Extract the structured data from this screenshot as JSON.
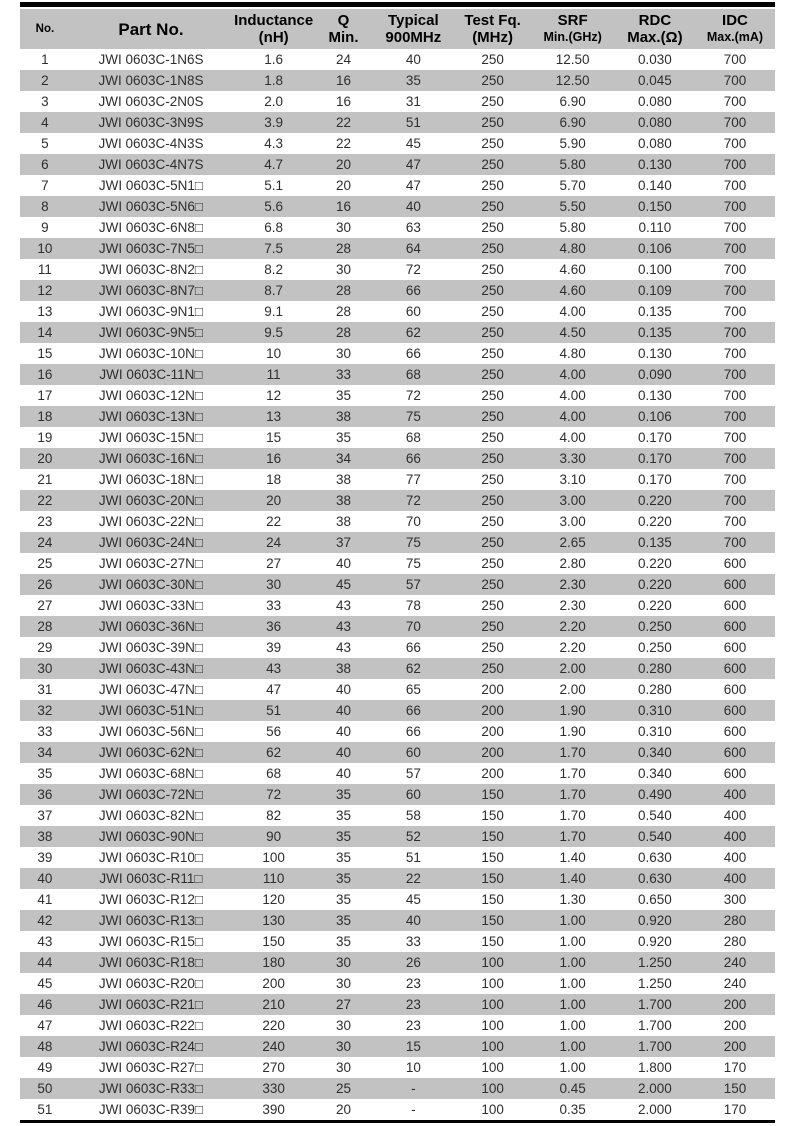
{
  "colors": {
    "header_bg": "#c2c2c2",
    "stripe_bg": "#c2c2c2",
    "rule": "#000000",
    "text_header": "#000000",
    "text_body": "#2e2e2e"
  },
  "table": {
    "columns": [
      {
        "key": "no",
        "line1": "No.",
        "line2": ""
      },
      {
        "key": "part_no",
        "line1": "Part No.",
        "line2": ""
      },
      {
        "key": "inductance",
        "line1": "Inductance",
        "line2": "(nH)"
      },
      {
        "key": "q_min",
        "line1": "Q",
        "line2": "Min."
      },
      {
        "key": "typical",
        "line1": "Typical",
        "line2": "900MHz"
      },
      {
        "key": "test_fq",
        "line1": "Test Fq.",
        "line2": "(MHz)"
      },
      {
        "key": "srf",
        "line1": "SRF",
        "line2": "Min.(GHz)"
      },
      {
        "key": "rdc",
        "line1": "RDC",
        "line2": "Max.(Ω)"
      },
      {
        "key": "idc",
        "line1": "IDC",
        "line2": "Max.(mA)"
      }
    ],
    "rows": [
      [
        "1",
        "JWI 0603C-1N6S",
        "1.6",
        "24",
        "40",
        "250",
        "12.50",
        "0.030",
        "700"
      ],
      [
        "2",
        "JWI 0603C-1N8S",
        "1.8",
        "16",
        "35",
        "250",
        "12.50",
        "0.045",
        "700"
      ],
      [
        "3",
        "JWI 0603C-2N0S",
        "2.0",
        "16",
        "31",
        "250",
        "6.90",
        "0.080",
        "700"
      ],
      [
        "4",
        "JWI 0603C-3N9S",
        "3.9",
        "22",
        "51",
        "250",
        "6.90",
        "0.080",
        "700"
      ],
      [
        "5",
        "JWI 0603C-4N3S",
        "4.3",
        "22",
        "45",
        "250",
        "5.90",
        "0.080",
        "700"
      ],
      [
        "6",
        "JWI 0603C-4N7S",
        "4.7",
        "20",
        "47",
        "250",
        "5.80",
        "0.130",
        "700"
      ],
      [
        "7",
        "JWI 0603C-5N1□",
        "5.1",
        "20",
        "47",
        "250",
        "5.70",
        "0.140",
        "700"
      ],
      [
        "8",
        "JWI 0603C-5N6□",
        "5.6",
        "16",
        "40",
        "250",
        "5.50",
        "0.150",
        "700"
      ],
      [
        "9",
        "JWI 0603C-6N8□",
        "6.8",
        "30",
        "63",
        "250",
        "5.80",
        "0.110",
        "700"
      ],
      [
        "10",
        "JWI 0603C-7N5□",
        "7.5",
        "28",
        "64",
        "250",
        "4.80",
        "0.106",
        "700"
      ],
      [
        "11",
        "JWI 0603C-8N2□",
        "8.2",
        "30",
        "72",
        "250",
        "4.60",
        "0.100",
        "700"
      ],
      [
        "12",
        "JWI 0603C-8N7□",
        "8.7",
        "28",
        "66",
        "250",
        "4.60",
        "0.109",
        "700"
      ],
      [
        "13",
        "JWI 0603C-9N1□",
        "9.1",
        "28",
        "60",
        "250",
        "4.00",
        "0.135",
        "700"
      ],
      [
        "14",
        "JWI 0603C-9N5□",
        "9.5",
        "28",
        "62",
        "250",
        "4.50",
        "0.135",
        "700"
      ],
      [
        "15",
        "JWI 0603C-10N□",
        "10",
        "30",
        "66",
        "250",
        "4.80",
        "0.130",
        "700"
      ],
      [
        "16",
        "JWI 0603C-11N□",
        "11",
        "33",
        "68",
        "250",
        "4.00",
        "0.090",
        "700"
      ],
      [
        "17",
        "JWI 0603C-12N□",
        "12",
        "35",
        "72",
        "250",
        "4.00",
        "0.130",
        "700"
      ],
      [
        "18",
        "JWI 0603C-13N□",
        "13",
        "38",
        "75",
        "250",
        "4.00",
        "0.106",
        "700"
      ],
      [
        "19",
        "JWI 0603C-15N□",
        "15",
        "35",
        "68",
        "250",
        "4.00",
        "0.170",
        "700"
      ],
      [
        "20",
        "JWI 0603C-16N□",
        "16",
        "34",
        "66",
        "250",
        "3.30",
        "0.170",
        "700"
      ],
      [
        "21",
        "JWI 0603C-18N□",
        "18",
        "38",
        "77",
        "250",
        "3.10",
        "0.170",
        "700"
      ],
      [
        "22",
        "JWI 0603C-20N□",
        "20",
        "38",
        "72",
        "250",
        "3.00",
        "0.220",
        "700"
      ],
      [
        "23",
        "JWI 0603C-22N□",
        "22",
        "38",
        "70",
        "250",
        "3.00",
        "0.220",
        "700"
      ],
      [
        "24",
        "JWI 0603C-24N□",
        "24",
        "37",
        "75",
        "250",
        "2.65",
        "0.135",
        "700"
      ],
      [
        "25",
        "JWI 0603C-27N□",
        "27",
        "40",
        "75",
        "250",
        "2.80",
        "0.220",
        "600"
      ],
      [
        "26",
        "JWI 0603C-30N□",
        "30",
        "45",
        "57",
        "250",
        "2.30",
        "0.220",
        "600"
      ],
      [
        "27",
        "JWI 0603C-33N□",
        "33",
        "43",
        "78",
        "250",
        "2.30",
        "0.220",
        "600"
      ],
      [
        "28",
        "JWI 0603C-36N□",
        "36",
        "43",
        "70",
        "250",
        "2.20",
        "0.250",
        "600"
      ],
      [
        "29",
        "JWI 0603C-39N□",
        "39",
        "43",
        "66",
        "250",
        "2.20",
        "0.250",
        "600"
      ],
      [
        "30",
        "JWI 0603C-43N□",
        "43",
        "38",
        "62",
        "250",
        "2.00",
        "0.280",
        "600"
      ],
      [
        "31",
        "JWI 0603C-47N□",
        "47",
        "40",
        "65",
        "200",
        "2.00",
        "0.280",
        "600"
      ],
      [
        "32",
        "JWI 0603C-51N□",
        "51",
        "40",
        "66",
        "200",
        "1.90",
        "0.310",
        "600"
      ],
      [
        "33",
        "JWI 0603C-56N□",
        "56",
        "40",
        "66",
        "200",
        "1.90",
        "0.310",
        "600"
      ],
      [
        "34",
        "JWI 0603C-62N□",
        "62",
        "40",
        "60",
        "200",
        "1.70",
        "0.340",
        "600"
      ],
      [
        "35",
        "JWI 0603C-68N□",
        "68",
        "40",
        "57",
        "200",
        "1.70",
        "0.340",
        "600"
      ],
      [
        "36",
        "JWI 0603C-72N□",
        "72",
        "35",
        "60",
        "150",
        "1.70",
        "0.490",
        "400"
      ],
      [
        "37",
        "JWI 0603C-82N□",
        "82",
        "35",
        "58",
        "150",
        "1.70",
        "0.540",
        "400"
      ],
      [
        "38",
        "JWI 0603C-90N□",
        "90",
        "35",
        "52",
        "150",
        "1.70",
        "0.540",
        "400"
      ],
      [
        "39",
        "JWI 0603C-R10□",
        "100",
        "35",
        "51",
        "150",
        "1.40",
        "0.630",
        "400"
      ],
      [
        "40",
        "JWI 0603C-R11□",
        "110",
        "35",
        "22",
        "150",
        "1.40",
        "0.630",
        "400"
      ],
      [
        "41",
        "JWI 0603C-R12□",
        "120",
        "35",
        "45",
        "150",
        "1.30",
        "0.650",
        "300"
      ],
      [
        "42",
        "JWI 0603C-R13□",
        "130",
        "35",
        "40",
        "150",
        "1.00",
        "0.920",
        "280"
      ],
      [
        "43",
        "JWI 0603C-R15□",
        "150",
        "35",
        "33",
        "150",
        "1.00",
        "0.920",
        "280"
      ],
      [
        "44",
        "JWI 0603C-R18□",
        "180",
        "30",
        "26",
        "100",
        "1.00",
        "1.250",
        "240"
      ],
      [
        "45",
        "JWI 0603C-R20□",
        "200",
        "30",
        "23",
        "100",
        "1.00",
        "1.250",
        "240"
      ],
      [
        "46",
        "JWI 0603C-R21□",
        "210",
        "27",
        "23",
        "100",
        "1.00",
        "1.700",
        "200"
      ],
      [
        "47",
        "JWI 0603C-R22□",
        "220",
        "30",
        "23",
        "100",
        "1.00",
        "1.700",
        "200"
      ],
      [
        "48",
        "JWI 0603C-R24□",
        "240",
        "30",
        "15",
        "100",
        "1.00",
        "1.700",
        "200"
      ],
      [
        "49",
        "JWI 0603C-R27□",
        "270",
        "30",
        "10",
        "100",
        "1.00",
        "1.800",
        "170"
      ],
      [
        "50",
        "JWI 0603C-R33□",
        "330",
        "25",
        "-",
        "100",
        "0.45",
        "2.000",
        "150"
      ],
      [
        "51",
        "JWI 0603C-R39□",
        "390",
        "20",
        "-",
        "100",
        "0.35",
        "2.000",
        "170"
      ]
    ],
    "stripe_rule": "even rows shaded"
  }
}
